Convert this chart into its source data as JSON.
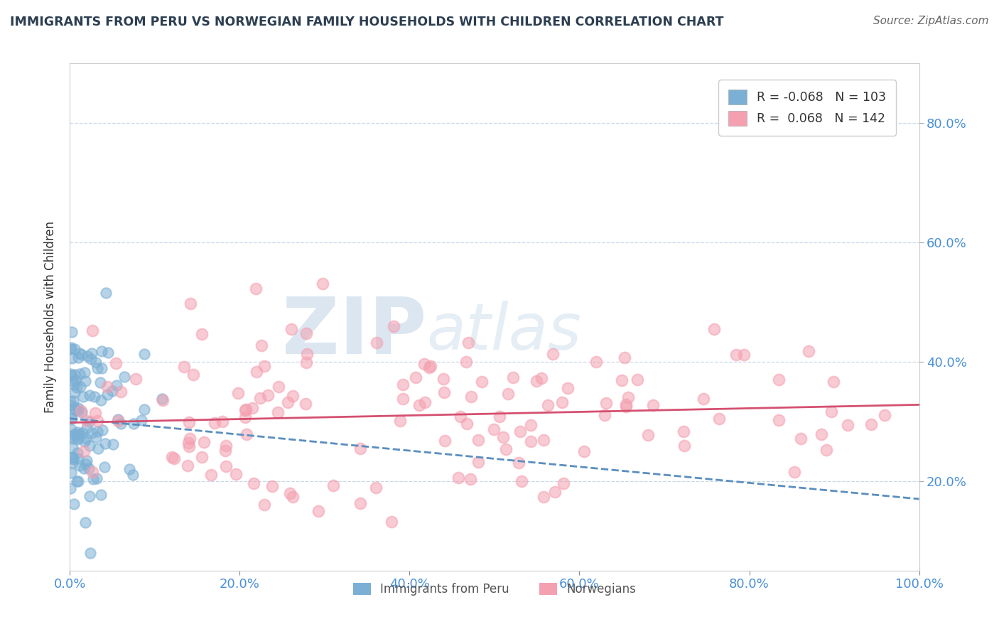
{
  "title": "IMMIGRANTS FROM PERU VS NORWEGIAN FAMILY HOUSEHOLDS WITH CHILDREN CORRELATION CHART",
  "source": "Source: ZipAtlas.com",
  "ylabel": "Family Households with Children",
  "legend_entries_label": [
    "R = -0.068   N = 103",
    "R =  0.068   N = 142"
  ],
  "legend_bottom": [
    "Immigrants from Peru",
    "Norwegians"
  ],
  "xlim": [
    0.0,
    1.0
  ],
  "ylim": [
    0.05,
    0.9
  ],
  "yticks": [
    0.2,
    0.4,
    0.6,
    0.8
  ],
  "xticks": [
    0.0,
    0.2,
    0.4,
    0.6,
    0.8,
    1.0
  ],
  "blue_color": "#7bafd4",
  "pink_color": "#f4a0b0",
  "blue_line_color": "#5a8ec0",
  "pink_line_color": "#d45070",
  "watermark": "ZIPatlas",
  "watermark_color": "#cddcec",
  "blue_N": 103,
  "pink_N": 142,
  "blue_intercept": 0.305,
  "blue_slope": -0.135,
  "pink_intercept": 0.298,
  "pink_slope": 0.03,
  "background_color": "#ffffff",
  "title_color": "#2c3e50",
  "axis_color": "#4a90d9",
  "grid_color": "#c8d8e8",
  "seed": 42
}
